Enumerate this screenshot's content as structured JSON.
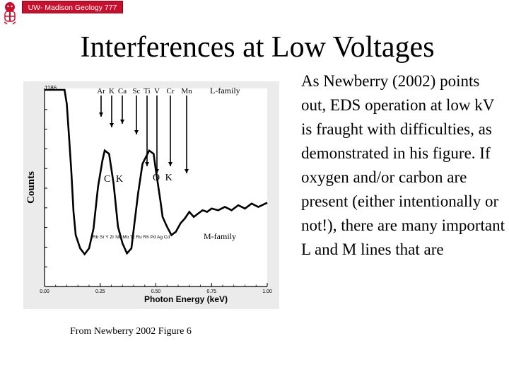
{
  "header": {
    "logo_text": "UW- Madison Geology  777",
    "emblem_icon": "badger-mascot-icon"
  },
  "slide": {
    "title": "Interferences at Low Voltages",
    "caption": "From Newberry 2002 Figure 6",
    "body": "As Newberry (2002) points out, EDS operation at low kV is fraught with difficulties, as demonstrated in his figure. If oxygen and/or carbon are present (either intentionally or not!), there are many important L and M lines that are"
  },
  "chart_data": {
    "type": "line",
    "xlabel": "Photon Energy (keV)",
    "ylabel": "Counts",
    "xlim": [
      0.0,
      1.0
    ],
    "x_ticks": [
      "0.00",
      "0.25",
      "0.50",
      "0.75",
      "1.00"
    ],
    "y_top_label": "1186",
    "grid": false,
    "series": [
      {
        "x": [
          0.0,
          0.04,
          0.09,
          0.1,
          0.11,
          0.12,
          0.13,
          0.14,
          0.16,
          0.18,
          0.2,
          0.22,
          0.24,
          0.26,
          0.27,
          0.29,
          0.31,
          0.33,
          0.35,
          0.37,
          0.39,
          0.4,
          0.42,
          0.44,
          0.47,
          0.49,
          0.5,
          0.52,
          0.53,
          0.55,
          0.57,
          0.59,
          0.61,
          0.63,
          0.65,
          0.67,
          0.69,
          0.71,
          0.73,
          0.75,
          0.78,
          0.81,
          0.84,
          0.87,
          0.9,
          0.93,
          0.96,
          1.0
        ],
        "y": [
          1186,
          1186,
          1186,
          1100,
          900,
          700,
          450,
          310,
          230,
          195,
          230,
          350,
          600,
          760,
          820,
          800,
          620,
          360,
          260,
          200,
          230,
          340,
          560,
          740,
          820,
          800,
          700,
          520,
          420,
          360,
          310,
          330,
          380,
          410,
          450,
          420,
          440,
          460,
          450,
          470,
          460,
          480,
          460,
          490,
          470,
          500,
          480,
          505
        ]
      }
    ],
    "annotations": {
      "l_family_label": "L-family",
      "m_family_label": "M-family",
      "l_lines": [
        "Ar",
        "K",
        "Ca",
        "Sc",
        "Ti",
        "V",
        "Cr",
        "Mn"
      ],
      "m_lines": "Rb Sr Y Zr Nb Mo Tc Ru Rh Pd Ag Cd",
      "peak_labels": [
        "C K",
        "O K"
      ]
    }
  }
}
